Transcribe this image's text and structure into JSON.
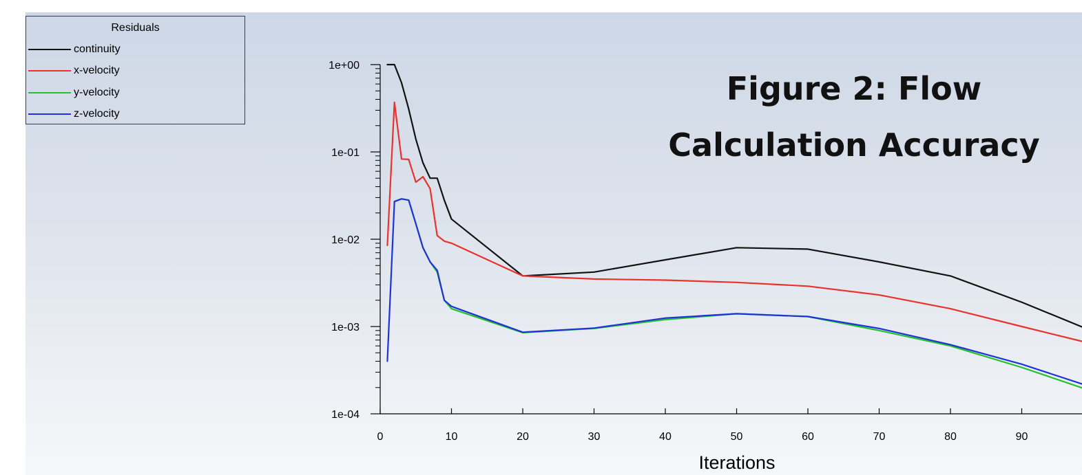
{
  "slide": {
    "title_line1": "Figure 2: Flow",
    "title_line2": "Calculation Accuracy"
  },
  "chart_data": {
    "type": "line",
    "title": "",
    "xlabel": "Iterations",
    "ylabel": "",
    "y_scale": "log",
    "xlim": [
      0,
      100
    ],
    "ylim": [
      0.0001,
      1
    ],
    "x_ticks": [
      0,
      10,
      20,
      30,
      40,
      50,
      60,
      70,
      80,
      90
    ],
    "y_ticks": [
      "1e+00",
      "1e-01",
      "1e-02",
      "1e-03",
      "1e-04"
    ],
    "grid": false,
    "legend": {
      "title": "Residuals",
      "placement": "top-left"
    },
    "series": [
      {
        "name": "continuity",
        "color": "#111111",
        "points": [
          [
            1,
            1.0
          ],
          [
            2,
            1.0
          ],
          [
            3,
            0.62
          ],
          [
            4,
            0.31
          ],
          [
            5,
            0.14
          ],
          [
            6,
            0.075
          ],
          [
            7,
            0.05
          ],
          [
            8,
            0.05
          ],
          [
            9,
            0.028
          ],
          [
            10,
            0.017
          ],
          [
            20,
            0.0038
          ],
          [
            30,
            0.0042
          ],
          [
            40,
            0.0058
          ],
          [
            50,
            0.008
          ],
          [
            60,
            0.0077
          ],
          [
            70,
            0.0055
          ],
          [
            80,
            0.0038
          ],
          [
            90,
            0.0019
          ],
          [
            100,
            0.00088
          ]
        ]
      },
      {
        "name": "x-velocity",
        "color": "#e8322b",
        "points": [
          [
            1,
            0.0085
          ],
          [
            2,
            0.37
          ],
          [
            3,
            0.083
          ],
          [
            4,
            0.082
          ],
          [
            5,
            0.045
          ],
          [
            6,
            0.052
          ],
          [
            7,
            0.038
          ],
          [
            8,
            0.011
          ],
          [
            9,
            0.0095
          ],
          [
            10,
            0.009
          ],
          [
            20,
            0.0038
          ],
          [
            30,
            0.0035
          ],
          [
            40,
            0.0034
          ],
          [
            50,
            0.0032
          ],
          [
            60,
            0.0029
          ],
          [
            70,
            0.0023
          ],
          [
            80,
            0.0016
          ],
          [
            90,
            0.001
          ],
          [
            100,
            0.00063
          ]
        ]
      },
      {
        "name": "y-velocity",
        "color": "#22c22b",
        "points": [
          [
            2,
            0.027
          ],
          [
            3,
            0.029
          ],
          [
            4,
            0.028
          ],
          [
            5,
            0.015
          ],
          [
            6,
            0.008
          ],
          [
            7,
            0.0055
          ],
          [
            8,
            0.0042
          ],
          [
            9,
            0.002
          ],
          [
            10,
            0.0016
          ],
          [
            20,
            0.00085
          ],
          [
            30,
            0.00095
          ],
          [
            40,
            0.0012
          ],
          [
            50,
            0.0014
          ],
          [
            60,
            0.0013
          ],
          [
            70,
            0.0009
          ],
          [
            80,
            0.0006
          ],
          [
            90,
            0.00034
          ],
          [
            100,
            0.00018
          ]
        ]
      },
      {
        "name": "z-velocity",
        "color": "#1f32d8",
        "points": [
          [
            1,
            0.0004
          ],
          [
            2,
            0.027
          ],
          [
            3,
            0.029
          ],
          [
            4,
            0.028
          ],
          [
            5,
            0.015
          ],
          [
            6,
            0.008
          ],
          [
            7,
            0.0055
          ],
          [
            8,
            0.0044
          ],
          [
            9,
            0.002
          ],
          [
            10,
            0.0017
          ],
          [
            20,
            0.00086
          ],
          [
            30,
            0.00096
          ],
          [
            40,
            0.00125
          ],
          [
            50,
            0.0014
          ],
          [
            60,
            0.0013
          ],
          [
            70,
            0.00095
          ],
          [
            80,
            0.00062
          ],
          [
            90,
            0.00037
          ],
          [
            100,
            0.0002
          ]
        ]
      }
    ]
  }
}
